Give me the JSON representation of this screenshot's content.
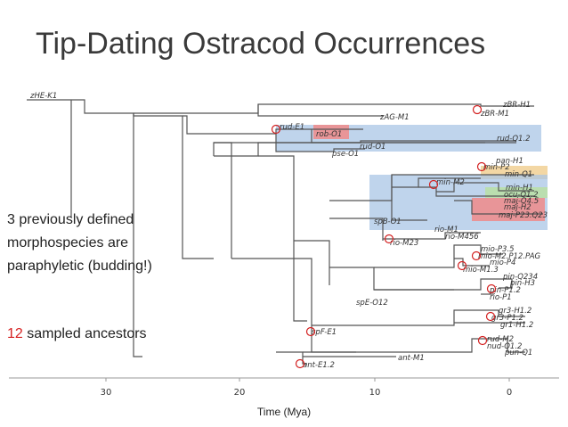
{
  "title": "Tip-Dating Ostracod Occurrences",
  "callouts": {
    "paraphyly": "3 previously defined morphospecies are paraphyletic (budding!)",
    "ancestors_count": "12",
    "ancestors_text": "sampled ancestors"
  },
  "axis": {
    "title": "Time (Mya)",
    "ticks": [
      30,
      20,
      10,
      0
    ]
  },
  "colors": {
    "branch": "#555555",
    "ancestor_marker": "#d32020",
    "highlight_blue": "#a9c6e6",
    "highlight_red": "#ef8a8a",
    "highlight_orange": "#f2d39a",
    "highlight_green": "#b9dfa8"
  },
  "taxa": [
    "zHE-K1",
    "zBR-H1",
    "zBR-M1",
    "zAG-M1",
    "rud-E1",
    "rob-O1",
    "rud-Q1.2",
    "rud-O1",
    "pse-O1",
    "pan-H1",
    "min-P2",
    "min-Q1",
    "min-M2",
    "min-H1",
    "ocu-Q1.2",
    "maj-Q4.5",
    "maj-H2",
    "maj-P23.Q23",
    "spB-O1",
    "rio-M1",
    "rio-M456",
    "rio-M23",
    "mio-P3.5",
    "mio-M2.P12.PAG",
    "mio-P4",
    "mio-M1.3",
    "pin-Q234",
    "pin-H3",
    "pin-P1.2",
    "rio-P1",
    "spE-O12",
    "gr3-H1.2",
    "gr3-P1.2",
    "gr1-H1.2",
    "spF-E1",
    "rud-M2",
    "nud-Q1.2",
    "pun-Q1",
    "ant-M1",
    "ant-E1.2"
  ]
}
